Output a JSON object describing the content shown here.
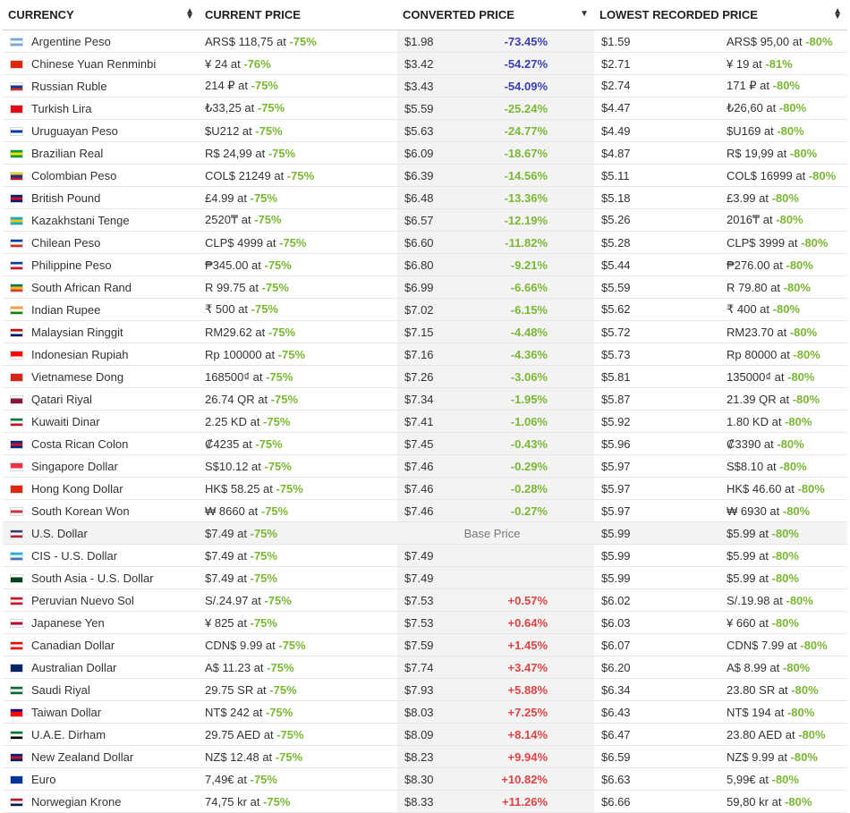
{
  "headers": {
    "currency": "CURRENCY",
    "current_price": "CURRENT PRICE",
    "converted_price": "CONVERTED PRICE",
    "lowest_price": "LOWEST RECORDED PRICE"
  },
  "base_label": "Base Price",
  "colors": {
    "flag_base": "#888888"
  },
  "rows": [
    {
      "name": "Argentine Peso",
      "flag": [
        "#75aadb",
        "#ffffff",
        "#75aadb"
      ],
      "current": "ARS$ 118,75 at ",
      "current_pct": "-75%",
      "converted": "$1.98",
      "diff": "-73.45%",
      "diff_class": "blue",
      "low": "$1.59",
      "low_orig": "ARS$ 95,00 at ",
      "low_pct": "-80%"
    },
    {
      "name": "Chinese Yuan Renminbi",
      "flag": [
        "#de2910",
        "#de2910",
        "#de2910"
      ],
      "current": "¥ 24 at ",
      "current_pct": "-76%",
      "converted": "$3.42",
      "diff": "-54.27%",
      "diff_class": "blue",
      "low": "$2.71",
      "low_orig": "¥ 19 at ",
      "low_pct": "-81%"
    },
    {
      "name": "Russian Ruble",
      "flag": [
        "#ffffff",
        "#0039a6",
        "#d52b1e"
      ],
      "current": "214 ₽ at ",
      "current_pct": "-75%",
      "converted": "$3.43",
      "diff": "-54.09%",
      "diff_class": "blue",
      "low": "$2.74",
      "low_orig": "171 ₽ at ",
      "low_pct": "-80%"
    },
    {
      "name": "Turkish Lira",
      "flag": [
        "#e30a17",
        "#e30a17",
        "#e30a17"
      ],
      "current": "₺33,25 at ",
      "current_pct": "-75%",
      "converted": "$5.59",
      "diff": "-25.24%",
      "diff_class": "green",
      "low": "$4.47",
      "low_orig": "₺26,60 at ",
      "low_pct": "-80%"
    },
    {
      "name": "Uruguayan Peso",
      "flag": [
        "#ffffff",
        "#0038a8",
        "#ffffff"
      ],
      "current": "$U212 at ",
      "current_pct": "-75%",
      "converted": "$5.63",
      "diff": "-24.77%",
      "diff_class": "green",
      "low": "$4.49",
      "low_orig": "$U169 at ",
      "low_pct": "-80%"
    },
    {
      "name": "Brazilian Real",
      "flag": [
        "#009c3b",
        "#ffdf00",
        "#009c3b"
      ],
      "current": "R$ 24,99 at ",
      "current_pct": "-75%",
      "converted": "$6.09",
      "diff": "-18.67%",
      "diff_class": "green",
      "low": "$4.87",
      "low_orig": "R$ 19,99 at ",
      "low_pct": "-80%"
    },
    {
      "name": "Colombian Peso",
      "flag": [
        "#fcd116",
        "#003893",
        "#ce1126"
      ],
      "current": "COL$ 21249 at ",
      "current_pct": "-75%",
      "converted": "$6.39",
      "diff": "-14.56%",
      "diff_class": "green",
      "low": "$5.11",
      "low_orig": "COL$ 16999 at ",
      "low_pct": "-80%"
    },
    {
      "name": "British Pound",
      "flag": [
        "#012169",
        "#c8102e",
        "#012169"
      ],
      "current": "£4.99 at ",
      "current_pct": "-75%",
      "converted": "$6.48",
      "diff": "-13.36%",
      "diff_class": "green",
      "low": "$5.18",
      "low_orig": "£3.99 at ",
      "low_pct": "-80%"
    },
    {
      "name": "Kazakhstani Tenge",
      "flag": [
        "#00afca",
        "#fec50c",
        "#00afca"
      ],
      "current": "2520₸ at ",
      "current_pct": "-75%",
      "converted": "$6.57",
      "diff": "-12.19%",
      "diff_class": "green",
      "low": "$5.26",
      "low_orig": "2016₸ at ",
      "low_pct": "-80%"
    },
    {
      "name": "Chilean Peso",
      "flag": [
        "#0039a6",
        "#ffffff",
        "#d52b1e"
      ],
      "current": "CLP$ 4999 at ",
      "current_pct": "-75%",
      "converted": "$6.60",
      "diff": "-11.82%",
      "diff_class": "green",
      "low": "$5.28",
      "low_orig": "CLP$ 3999 at ",
      "low_pct": "-80%"
    },
    {
      "name": "Philippine Peso",
      "flag": [
        "#0038a8",
        "#ffffff",
        "#ce1126"
      ],
      "current": "₱345.00 at ",
      "current_pct": "-75%",
      "converted": "$6.80",
      "diff": "-9.21%",
      "diff_class": "green",
      "low": "$5.44",
      "low_orig": "₱276.00 at ",
      "low_pct": "-80%"
    },
    {
      "name": "South African Rand",
      "flag": [
        "#007a4d",
        "#ffb612",
        "#de3831"
      ],
      "current": "R 99.75 at ",
      "current_pct": "-75%",
      "converted": "$6.99",
      "diff": "-6.66%",
      "diff_class": "green",
      "low": "$5.59",
      "low_orig": "R 79.80 at ",
      "low_pct": "-80%"
    },
    {
      "name": "Indian Rupee",
      "flag": [
        "#ff9933",
        "#ffffff",
        "#138808"
      ],
      "current": "₹ 500 at ",
      "current_pct": "-75%",
      "converted": "$7.02",
      "diff": "-6.15%",
      "diff_class": "green",
      "low": "$5.62",
      "low_orig": "₹ 400 at ",
      "low_pct": "-80%"
    },
    {
      "name": "Malaysian Ringgit",
      "flag": [
        "#cc0001",
        "#ffffff",
        "#010066"
      ],
      "current": "RM29.62 at ",
      "current_pct": "-75%",
      "converted": "$7.15",
      "diff": "-4.48%",
      "diff_class": "green",
      "low": "$5.72",
      "low_orig": "RM23.70 at ",
      "low_pct": "-80%"
    },
    {
      "name": "Indonesian Rupiah",
      "flag": [
        "#ff0000",
        "#ff0000",
        "#ffffff"
      ],
      "current": "Rp 100000 at ",
      "current_pct": "-75%",
      "converted": "$7.16",
      "diff": "-4.36%",
      "diff_class": "green",
      "low": "$5.73",
      "low_orig": "Rp 80000 at ",
      "low_pct": "-80%"
    },
    {
      "name": "Vietnamese Dong",
      "flag": [
        "#da251d",
        "#da251d",
        "#da251d"
      ],
      "current": "168500₫ at ",
      "current_pct": "-75%",
      "converted": "$7.26",
      "diff": "-3.06%",
      "diff_class": "green",
      "low": "$5.81",
      "low_orig": "135000₫ at ",
      "low_pct": "-80%"
    },
    {
      "name": "Qatari Riyal",
      "flag": [
        "#ffffff",
        "#8a1538",
        "#8a1538"
      ],
      "current": "26.74 QR at ",
      "current_pct": "-75%",
      "converted": "$7.34",
      "diff": "-1.95%",
      "diff_class": "green",
      "low": "$5.87",
      "low_orig": "21.39 QR at ",
      "low_pct": "-80%"
    },
    {
      "name": "Kuwaiti Dinar",
      "flag": [
        "#007a3d",
        "#ffffff",
        "#ce1126"
      ],
      "current": "2.25 KD at ",
      "current_pct": "-75%",
      "converted": "$7.41",
      "diff": "-1.06%",
      "diff_class": "green",
      "low": "$5.92",
      "low_orig": "1.80 KD at ",
      "low_pct": "-80%"
    },
    {
      "name": "Costa Rican Colon",
      "flag": [
        "#002b7f",
        "#ce1126",
        "#002b7f"
      ],
      "current": "₡4235 at ",
      "current_pct": "-75%",
      "converted": "$7.45",
      "diff": "-0.43%",
      "diff_class": "green",
      "low": "$5.96",
      "low_orig": "₡3390 at ",
      "low_pct": "-80%"
    },
    {
      "name": "Singapore Dollar",
      "flag": [
        "#ef3340",
        "#ef3340",
        "#ffffff"
      ],
      "current": "S$10.12 at ",
      "current_pct": "-75%",
      "converted": "$7.46",
      "diff": "-0.29%",
      "diff_class": "green",
      "low": "$5.97",
      "low_orig": "S$8.10 at ",
      "low_pct": "-80%"
    },
    {
      "name": "Hong Kong Dollar",
      "flag": [
        "#de2910",
        "#de2910",
        "#de2910"
      ],
      "current": "HK$ 58.25 at ",
      "current_pct": "-75%",
      "converted": "$7.46",
      "diff": "-0.28%",
      "diff_class": "green",
      "low": "$5.97",
      "low_orig": "HK$ 46.60 at ",
      "low_pct": "-80%"
    },
    {
      "name": "South Korean Won",
      "flag": [
        "#ffffff",
        "#cd2e3a",
        "#ffffff"
      ],
      "current": "₩ 8660 at ",
      "current_pct": "-75%",
      "converted": "$7.46",
      "diff": "-0.27%",
      "diff_class": "green",
      "low": "$5.97",
      "low_orig": "₩ 6930 at ",
      "low_pct": "-80%"
    },
    {
      "name": "U.S. Dollar",
      "flag": [
        "#3c3b6e",
        "#ffffff",
        "#b22234"
      ],
      "current": "$7.49 at ",
      "current_pct": "-75%",
      "converted": "",
      "diff": "",
      "diff_class": "",
      "base": true,
      "low": "$5.99",
      "low_orig": "$5.99 at ",
      "low_pct": "-80%"
    },
    {
      "name": "CIS - U.S. Dollar",
      "flag": [
        "#00b5e2",
        "#ffffff",
        "#3a75c4"
      ],
      "current": "$7.49 at ",
      "current_pct": "-75%",
      "converted": "$7.49",
      "diff": "",
      "diff_class": "",
      "low": "$5.99",
      "low_orig": "$5.99 at ",
      "low_pct": "-80%"
    },
    {
      "name": "South Asia - U.S. Dollar",
      "flag": [
        "#ffffff",
        "#01411c",
        "#01411c"
      ],
      "current": "$7.49 at ",
      "current_pct": "-75%",
      "converted": "$7.49",
      "diff": "",
      "diff_class": "",
      "low": "$5.99",
      "low_orig": "$5.99 at ",
      "low_pct": "-80%"
    },
    {
      "name": "Peruvian Nuevo Sol",
      "flag": [
        "#d91023",
        "#ffffff",
        "#d91023"
      ],
      "current": "S/.24.97 at ",
      "current_pct": "-75%",
      "converted": "$7.53",
      "diff": "+0.57%",
      "diff_class": "red",
      "low": "$6.02",
      "low_orig": "S/.19.98 at ",
      "low_pct": "-80%"
    },
    {
      "name": "Japanese Yen",
      "flag": [
        "#ffffff",
        "#bc002d",
        "#ffffff"
      ],
      "current": "¥ 825 at ",
      "current_pct": "-75%",
      "converted": "$7.53",
      "diff": "+0.64%",
      "diff_class": "red",
      "low": "$6.03",
      "low_orig": "¥ 660 at ",
      "low_pct": "-80%"
    },
    {
      "name": "Canadian Dollar",
      "flag": [
        "#ff0000",
        "#ffffff",
        "#ff0000"
      ],
      "current": "CDN$ 9.99 at ",
      "current_pct": "-75%",
      "converted": "$7.59",
      "diff": "+1.45%",
      "diff_class": "red",
      "low": "$6.07",
      "low_orig": "CDN$ 7.99 at ",
      "low_pct": "-80%"
    },
    {
      "name": "Australian Dollar",
      "flag": [
        "#012169",
        "#012169",
        "#012169"
      ],
      "current": "A$ 11.23 at ",
      "current_pct": "-75%",
      "converted": "$7.74",
      "diff": "+3.47%",
      "diff_class": "red",
      "low": "$6.20",
      "low_orig": "A$ 8.99 at ",
      "low_pct": "-80%"
    },
    {
      "name": "Saudi Riyal",
      "flag": [
        "#006c35",
        "#ffffff",
        "#006c35"
      ],
      "current": "29.75 SR at ",
      "current_pct": "-75%",
      "converted": "$7.93",
      "diff": "+5.88%",
      "diff_class": "red",
      "low": "$6.34",
      "low_orig": "23.80 SR at ",
      "low_pct": "-80%"
    },
    {
      "name": "Taiwan Dollar",
      "flag": [
        "#000095",
        "#fe0000",
        "#fe0000"
      ],
      "current": "NT$ 242 at ",
      "current_pct": "-75%",
      "converted": "$8.03",
      "diff": "+7.25%",
      "diff_class": "red",
      "low": "$6.43",
      "low_orig": "NT$ 194 at ",
      "low_pct": "-80%"
    },
    {
      "name": "U.A.E. Dirham",
      "flag": [
        "#00732f",
        "#ffffff",
        "#000000"
      ],
      "current": "29.75 AED at ",
      "current_pct": "-75%",
      "converted": "$8.09",
      "diff": "+8.14%",
      "diff_class": "red",
      "low": "$6.47",
      "low_orig": "23.80 AED at ",
      "low_pct": "-80%"
    },
    {
      "name": "New Zealand Dollar",
      "flag": [
        "#012169",
        "#c8102e",
        "#012169"
      ],
      "current": "NZ$ 12.48 at ",
      "current_pct": "-75%",
      "converted": "$8.23",
      "diff": "+9.94%",
      "diff_class": "red",
      "low": "$6.59",
      "low_orig": "NZ$ 9.99 at ",
      "low_pct": "-80%"
    },
    {
      "name": "Euro",
      "flag": [
        "#003399",
        "#003399",
        "#003399"
      ],
      "current": "7,49€ at ",
      "current_pct": "-75%",
      "converted": "$8.30",
      "diff": "+10.82%",
      "diff_class": "red",
      "low": "$6.63",
      "low_orig": "5,99€ at ",
      "low_pct": "-80%"
    },
    {
      "name": "Norwegian Krone",
      "flag": [
        "#ba0c2f",
        "#ffffff",
        "#00205b"
      ],
      "current": "74,75 kr at ",
      "current_pct": "-75%",
      "converted": "$8.33",
      "diff": "+11.26%",
      "diff_class": "red",
      "low": "$6.66",
      "low_orig": "59,80 kr at ",
      "low_pct": "-80%"
    }
  ]
}
